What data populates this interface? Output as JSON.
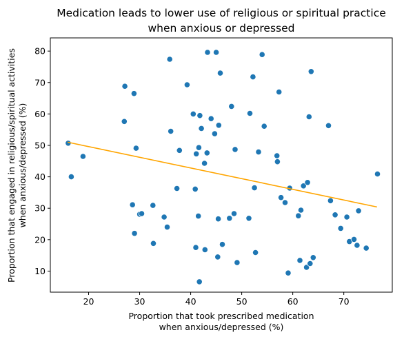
{
  "chart_data": {
    "type": "scatter",
    "title_lines": [
      "Medication leads to lower use of religious or spiritual practice",
      "when anxious or depressed"
    ],
    "xlabel_lines": [
      "Proportion that took prescribed medication",
      "when anxious/depressed (%)"
    ],
    "ylabel_lines": [
      "Proportion that engaged in religious/spiritual activities",
      "when anxious/depressed (%)"
    ],
    "xlim": [
      12.5,
      79.5
    ],
    "ylim": [
      3.3,
      84.2
    ],
    "xticks": [
      "20",
      "30",
      "40",
      "50",
      "60",
      "70"
    ],
    "yticks": [
      "10",
      "20",
      "30",
      "40",
      "50",
      "60",
      "70",
      "80"
    ],
    "grid": false,
    "point_color": "#1f77b4",
    "line_color": "#ffa500",
    "trend_line": {
      "x": [
        15.9,
        76.5
      ],
      "y": [
        51.0,
        30.4
      ]
    },
    "points": [
      {
        "x": 16.0,
        "y": 50.7
      },
      {
        "x": 16.6,
        "y": 40.0
      },
      {
        "x": 18.9,
        "y": 46.5
      },
      {
        "x": 27.0,
        "y": 57.6
      },
      {
        "x": 27.1,
        "y": 68.8
      },
      {
        "x": 28.9,
        "y": 66.5
      },
      {
        "x": 28.6,
        "y": 31.1
      },
      {
        "x": 29.0,
        "y": 22.0
      },
      {
        "x": 29.3,
        "y": 49.1
      },
      {
        "x": 30.0,
        "y": 28.1
      },
      {
        "x": 30.4,
        "y": 28.3
      },
      {
        "x": 32.6,
        "y": 30.9
      },
      {
        "x": 32.7,
        "y": 18.8
      },
      {
        "x": 34.8,
        "y": 27.2
      },
      {
        "x": 35.4,
        "y": 24.0
      },
      {
        "x": 35.9,
        "y": 77.4
      },
      {
        "x": 36.1,
        "y": 54.5
      },
      {
        "x": 37.3,
        "y": 36.3
      },
      {
        "x": 37.8,
        "y": 48.4
      },
      {
        "x": 39.3,
        "y": 69.3
      },
      {
        "x": 40.5,
        "y": 60.0
      },
      {
        "x": 40.9,
        "y": 36.1
      },
      {
        "x": 41.0,
        "y": 17.5
      },
      {
        "x": 41.1,
        "y": 47.3
      },
      {
        "x": 41.5,
        "y": 27.5
      },
      {
        "x": 41.6,
        "y": 49.3
      },
      {
        "x": 41.7,
        "y": 6.6
      },
      {
        "x": 41.8,
        "y": 59.5
      },
      {
        "x": 42.1,
        "y": 55.4
      },
      {
        "x": 42.7,
        "y": 44.3
      },
      {
        "x": 42.8,
        "y": 16.8
      },
      {
        "x": 43.2,
        "y": 47.6
      },
      {
        "x": 43.3,
        "y": 79.6
      },
      {
        "x": 44.0,
        "y": 58.5
      },
      {
        "x": 44.7,
        "y": 53.7
      },
      {
        "x": 45.0,
        "y": 79.6
      },
      {
        "x": 45.3,
        "y": 14.5
      },
      {
        "x": 45.4,
        "y": 26.6
      },
      {
        "x": 45.5,
        "y": 56.4
      },
      {
        "x": 45.8,
        "y": 73.0
      },
      {
        "x": 46.2,
        "y": 18.5
      },
      {
        "x": 47.6,
        "y": 26.8
      },
      {
        "x": 48.0,
        "y": 62.4
      },
      {
        "x": 48.5,
        "y": 28.3
      },
      {
        "x": 48.7,
        "y": 48.7
      },
      {
        "x": 49.1,
        "y": 12.7
      },
      {
        "x": 51.4,
        "y": 26.8
      },
      {
        "x": 51.6,
        "y": 60.2
      },
      {
        "x": 52.2,
        "y": 71.8
      },
      {
        "x": 52.5,
        "y": 36.5
      },
      {
        "x": 52.7,
        "y": 15.9
      },
      {
        "x": 53.3,
        "y": 47.9
      },
      {
        "x": 54.0,
        "y": 78.9
      },
      {
        "x": 54.4,
        "y": 56.1
      },
      {
        "x": 56.9,
        "y": 46.7
      },
      {
        "x": 57.0,
        "y": 44.8
      },
      {
        "x": 57.3,
        "y": 67.0
      },
      {
        "x": 57.7,
        "y": 33.4
      },
      {
        "x": 58.5,
        "y": 31.8
      },
      {
        "x": 59.1,
        "y": 9.4
      },
      {
        "x": 59.4,
        "y": 36.4
      },
      {
        "x": 61.1,
        "y": 27.6
      },
      {
        "x": 61.4,
        "y": 13.4
      },
      {
        "x": 61.6,
        "y": 29.4
      },
      {
        "x": 62.1,
        "y": 37.1
      },
      {
        "x": 62.7,
        "y": 11.2
      },
      {
        "x": 62.9,
        "y": 38.2
      },
      {
        "x": 63.2,
        "y": 59.1
      },
      {
        "x": 63.4,
        "y": 12.4
      },
      {
        "x": 63.6,
        "y": 73.5
      },
      {
        "x": 64.0,
        "y": 14.3
      },
      {
        "x": 67.0,
        "y": 56.3
      },
      {
        "x": 67.4,
        "y": 32.4
      },
      {
        "x": 68.3,
        "y": 27.9
      },
      {
        "x": 69.4,
        "y": 23.6
      },
      {
        "x": 70.6,
        "y": 27.2
      },
      {
        "x": 71.1,
        "y": 19.4
      },
      {
        "x": 72.0,
        "y": 20.1
      },
      {
        "x": 72.6,
        "y": 18.2
      },
      {
        "x": 72.9,
        "y": 29.2
      },
      {
        "x": 74.4,
        "y": 17.3
      },
      {
        "x": 76.6,
        "y": 40.9
      }
    ]
  }
}
